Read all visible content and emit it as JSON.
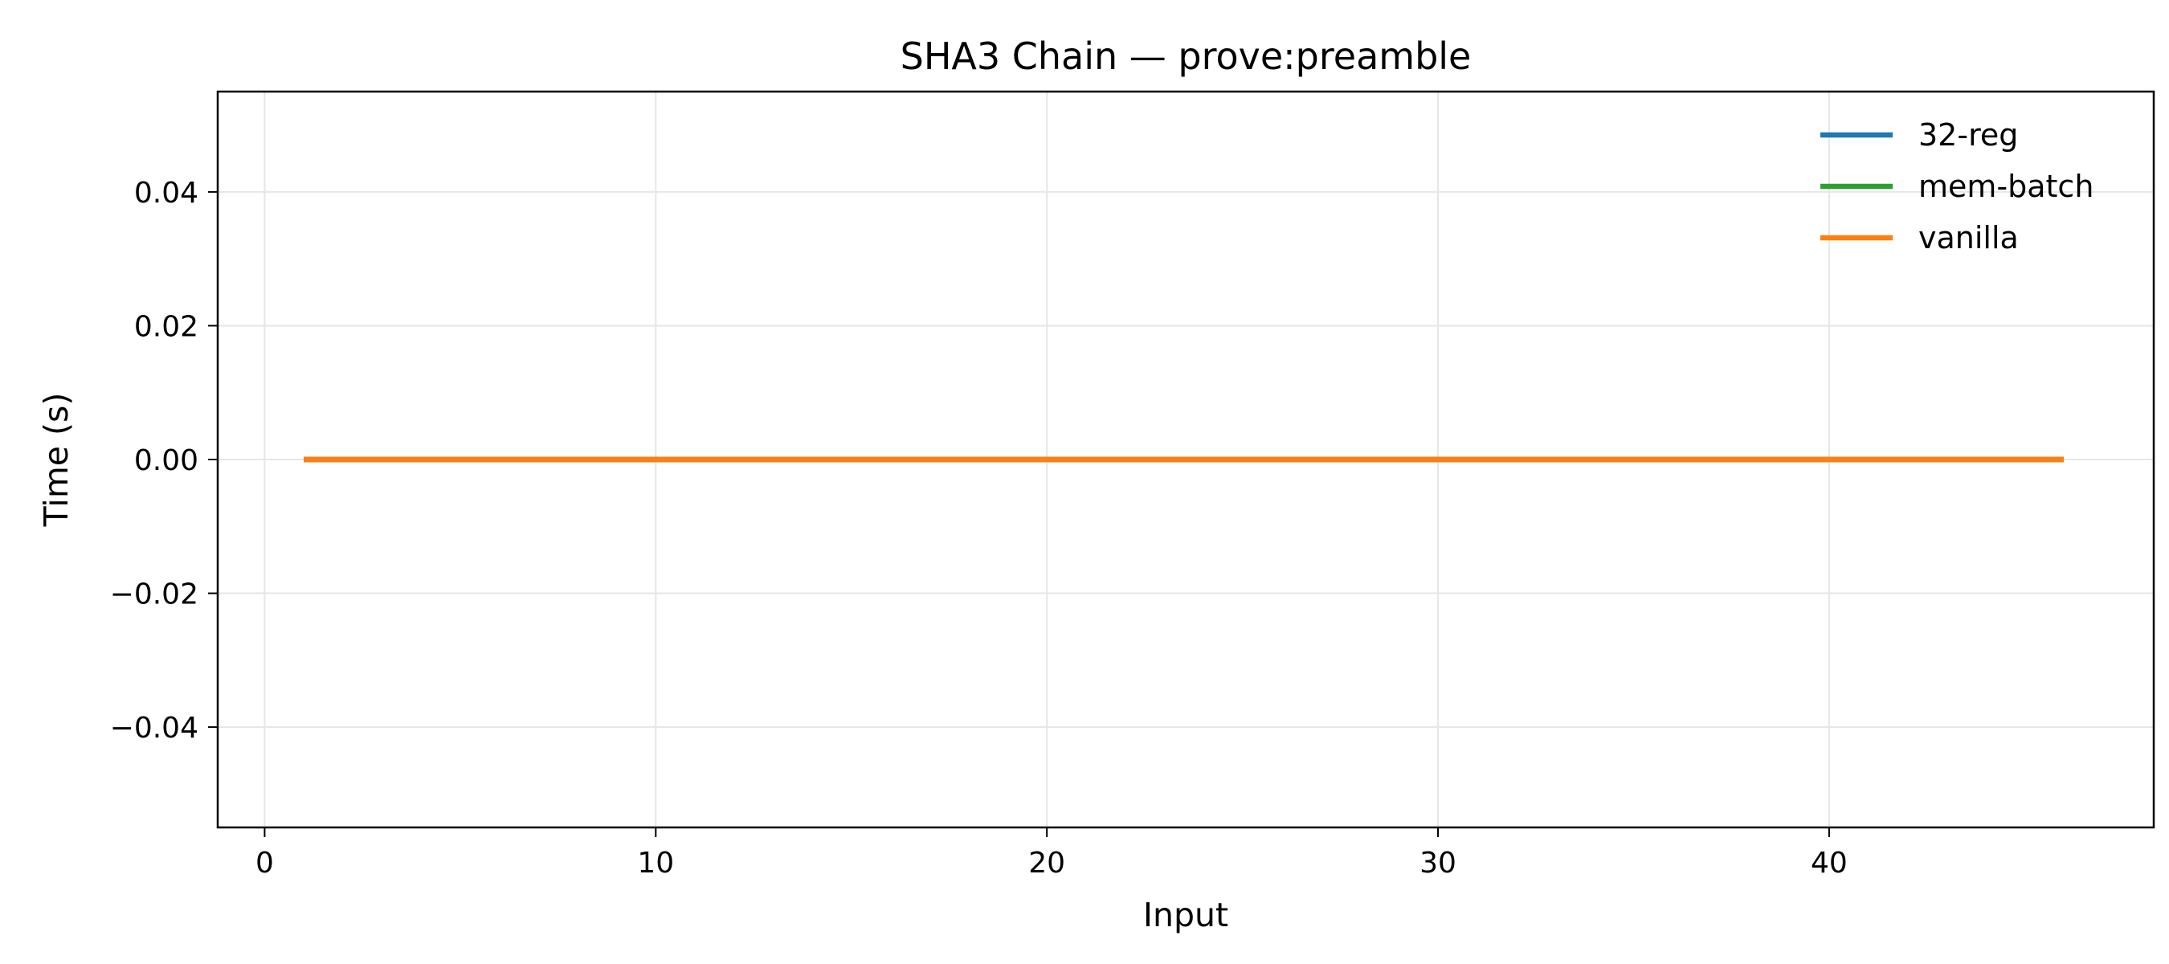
{
  "chart_data": {
    "type": "line",
    "title": "SHA3 Chain — prove:preamble",
    "xlabel": "Input",
    "ylabel": "Time (s)",
    "xlim": [
      -1.2,
      48.3
    ],
    "ylim": [
      -0.055,
      0.055
    ],
    "x_ticks": [
      0,
      10,
      20,
      30,
      40
    ],
    "x_tick_labels": [
      "0",
      "10",
      "20",
      "30",
      "40"
    ],
    "y_ticks": [
      0.04,
      0.02,
      0.0,
      -0.02,
      -0.04
    ],
    "y_tick_labels": [
      "0.04",
      "0.02",
      "0.00",
      "−0.02",
      "−0.04"
    ],
    "grid": true,
    "legend_position": "top-right",
    "x": [
      1,
      46
    ],
    "series": [
      {
        "name": "32-reg",
        "color": "#1f77b4",
        "values": [
          0,
          0
        ]
      },
      {
        "name": "mem-batch",
        "color": "#2ca02c",
        "values": [
          0,
          0
        ]
      },
      {
        "name": "vanilla",
        "color": "#ff7f0e",
        "values": [
          0,
          0
        ]
      }
    ]
  }
}
